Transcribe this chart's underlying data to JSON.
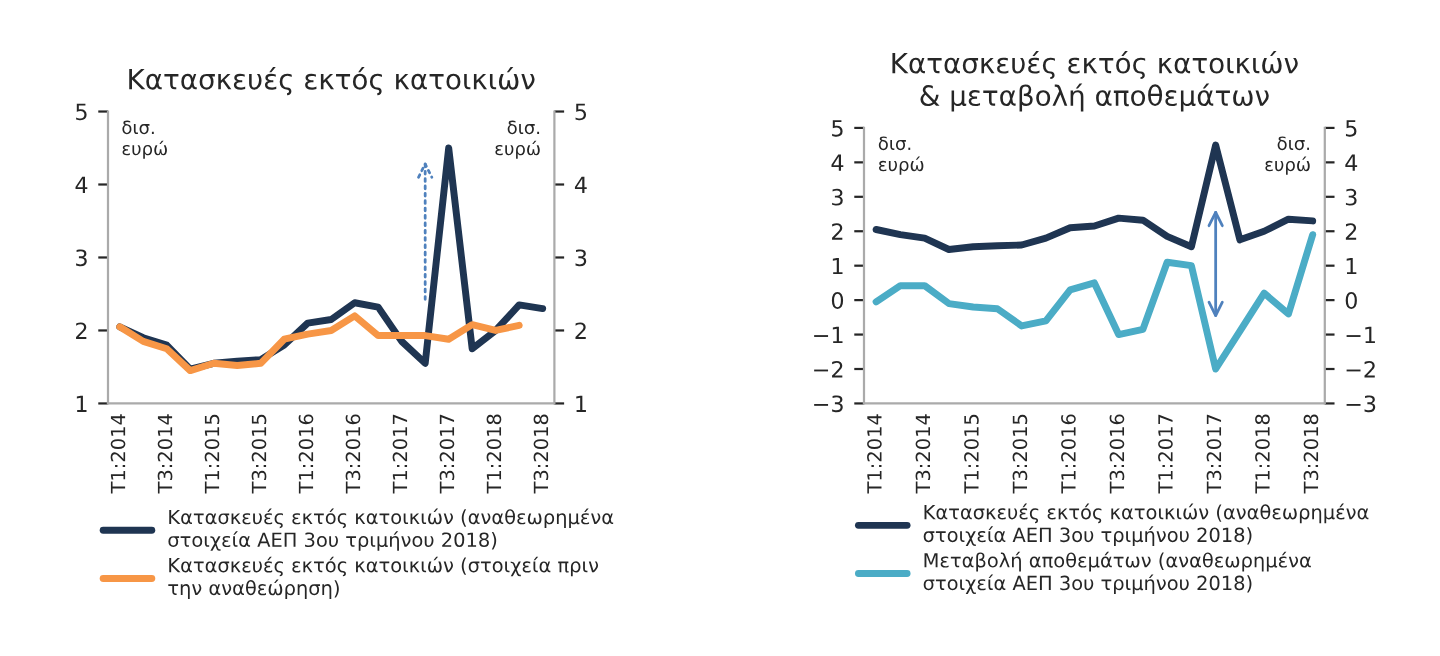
{
  "chart_data": [
    {
      "type": "line",
      "title": "Κατασκευές εκτός κατοικιών",
      "ylabel": "δισ.\nευρώ",
      "y2label": "δισ.\nευρώ",
      "categories": [
        "T1:2014",
        null,
        "T3:2014",
        null,
        "T1:2015",
        null,
        "T3:2015",
        null,
        "T1:2016",
        null,
        "T3:2016",
        null,
        "T1:2017",
        null,
        "T3:2017",
        null,
        "T1:2018",
        null,
        "T3:2018"
      ],
      "series": [
        {
          "name": "Κατασκευές εκτός κατοικιών (αναθεωρημένα\nστοιχεία ΑΕΠ 3ου τριμήνου 2018)",
          "color": "#1f3552",
          "values": [
            2.05,
            1.9,
            1.8,
            1.47,
            1.55,
            1.58,
            1.6,
            1.8,
            2.1,
            2.15,
            2.38,
            2.32,
            1.85,
            1.55,
            4.5,
            1.75,
            2.0,
            2.35,
            2.3
          ]
        },
        {
          "name": "Κατασκευές εκτός κατοικιών (στοιχεία πριν\nτην αναθεώρηση)",
          "color": "#f79646",
          "values": [
            2.05,
            1.85,
            1.75,
            1.45,
            1.55,
            1.52,
            1.55,
            1.88,
            1.95,
            2.0,
            2.2,
            1.93,
            1.93,
            1.93,
            1.88,
            2.08,
            2.0,
            2.07,
            null
          ]
        }
      ],
      "ylim": [
        1,
        5
      ],
      "yticks": [
        1,
        2,
        3,
        4,
        5
      ],
      "y2lim": [
        1,
        5
      ],
      "y2ticks": [
        1,
        2,
        3,
        4,
        5
      ],
      "legend": "bottom",
      "grid": false
    },
    {
      "type": "line",
      "title": "Κατασκευές εκτός κατοικιών\n& μεταβολή αποθεμάτων",
      "ylabel": "δισ.\nευρώ",
      "y2label": "δισ.\nευρώ",
      "categories": [
        "T1:2014",
        null,
        "T3:2014",
        null,
        "T1:2015",
        null,
        "T3:2015",
        null,
        "T1:2016",
        null,
        "T3:2016",
        null,
        "T1:2017",
        null,
        "T3:2017",
        null,
        "T1:2018",
        null,
        "T3:2018"
      ],
      "series": [
        {
          "name": "Κατασκευές εκτός κατοικιών (αναθεωρημένα\nστοιχεία ΑΕΠ 3ου τριμήνου 2018)",
          "color": "#1f3552",
          "values": [
            2.05,
            1.9,
            1.8,
            1.47,
            1.55,
            1.58,
            1.6,
            1.8,
            2.1,
            2.15,
            2.38,
            2.32,
            1.85,
            1.55,
            4.5,
            1.75,
            2.0,
            2.35,
            2.3
          ]
        },
        {
          "name": "Μεταβολή αποθεμάτων (αναθεωρημένα\nστοιχεία ΑΕΠ 3ου τριμήνου 2018)",
          "color": "#4bacc6",
          "values": [
            -0.05,
            0.42,
            0.42,
            -0.1,
            -0.2,
            -0.25,
            -0.75,
            -0.6,
            0.3,
            0.5,
            -1.0,
            -0.85,
            1.1,
            1.0,
            -2.0,
            -0.9,
            0.2,
            -0.4,
            1.9
          ]
        }
      ],
      "ylim": [
        -3,
        5
      ],
      "yticks": [
        -3,
        -2,
        -1,
        0,
        1,
        2,
        3,
        4,
        5
      ],
      "y2lim": [
        -3,
        5
      ],
      "y2ticks": [
        -3,
        -2,
        -1,
        0,
        1,
        2,
        3,
        4,
        5
      ],
      "legend": "bottom",
      "grid": false
    }
  ]
}
